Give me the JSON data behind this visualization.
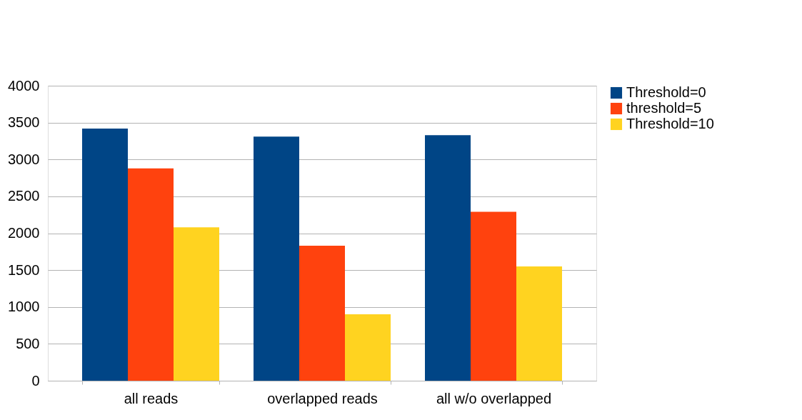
{
  "chart_data": {
    "type": "bar",
    "categories": [
      "all reads",
      "overlapped reads",
      "all w/o overlapped"
    ],
    "series": [
      {
        "name": "Threshold=0",
        "color": "#004586",
        "values": [
          3420,
          3310,
          3330
        ]
      },
      {
        "name": "threshold=5",
        "color": "#ff420e",
        "values": [
          2880,
          1830,
          2290
        ]
      },
      {
        "name": "Threshold=10",
        "color": "#ffd320",
        "values": [
          2080,
          900,
          1550
        ]
      }
    ],
    "ylim": [
      0,
      4000
    ],
    "yticks": [
      0,
      500,
      1000,
      1500,
      2000,
      2500,
      3000,
      3500,
      4000
    ],
    "grid": "y",
    "legend": "right"
  }
}
